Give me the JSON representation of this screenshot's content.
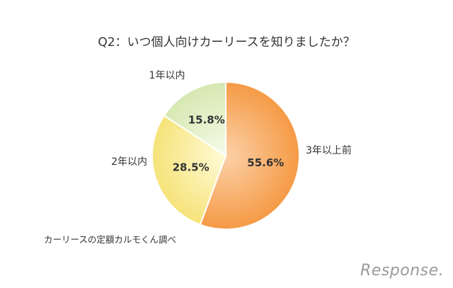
{
  "chart_data": {
    "type": "pie",
    "title": "Q2：いつ個人向けカーリースを知りましたか？",
    "start_angle_deg": 0,
    "direction": "clockwise",
    "slices": [
      {
        "label": "3年以上前",
        "value": 55.6,
        "value_label": "55.6%",
        "color_inner": "#fbd1a8",
        "color_outer": "#f59a45"
      },
      {
        "label": "2年以内",
        "value": 28.5,
        "value_label": "28.5%",
        "color_inner": "#fffbd8",
        "color_outer": "#f6e37a"
      },
      {
        "label": "1年以内",
        "value": 15.8,
        "value_label": "15.8%",
        "color_inner": "#f6fbe9",
        "color_outer": "#d6e8b2"
      }
    ]
  },
  "source_note": "カーリースの定額カルモくん調べ",
  "watermark": "Response."
}
